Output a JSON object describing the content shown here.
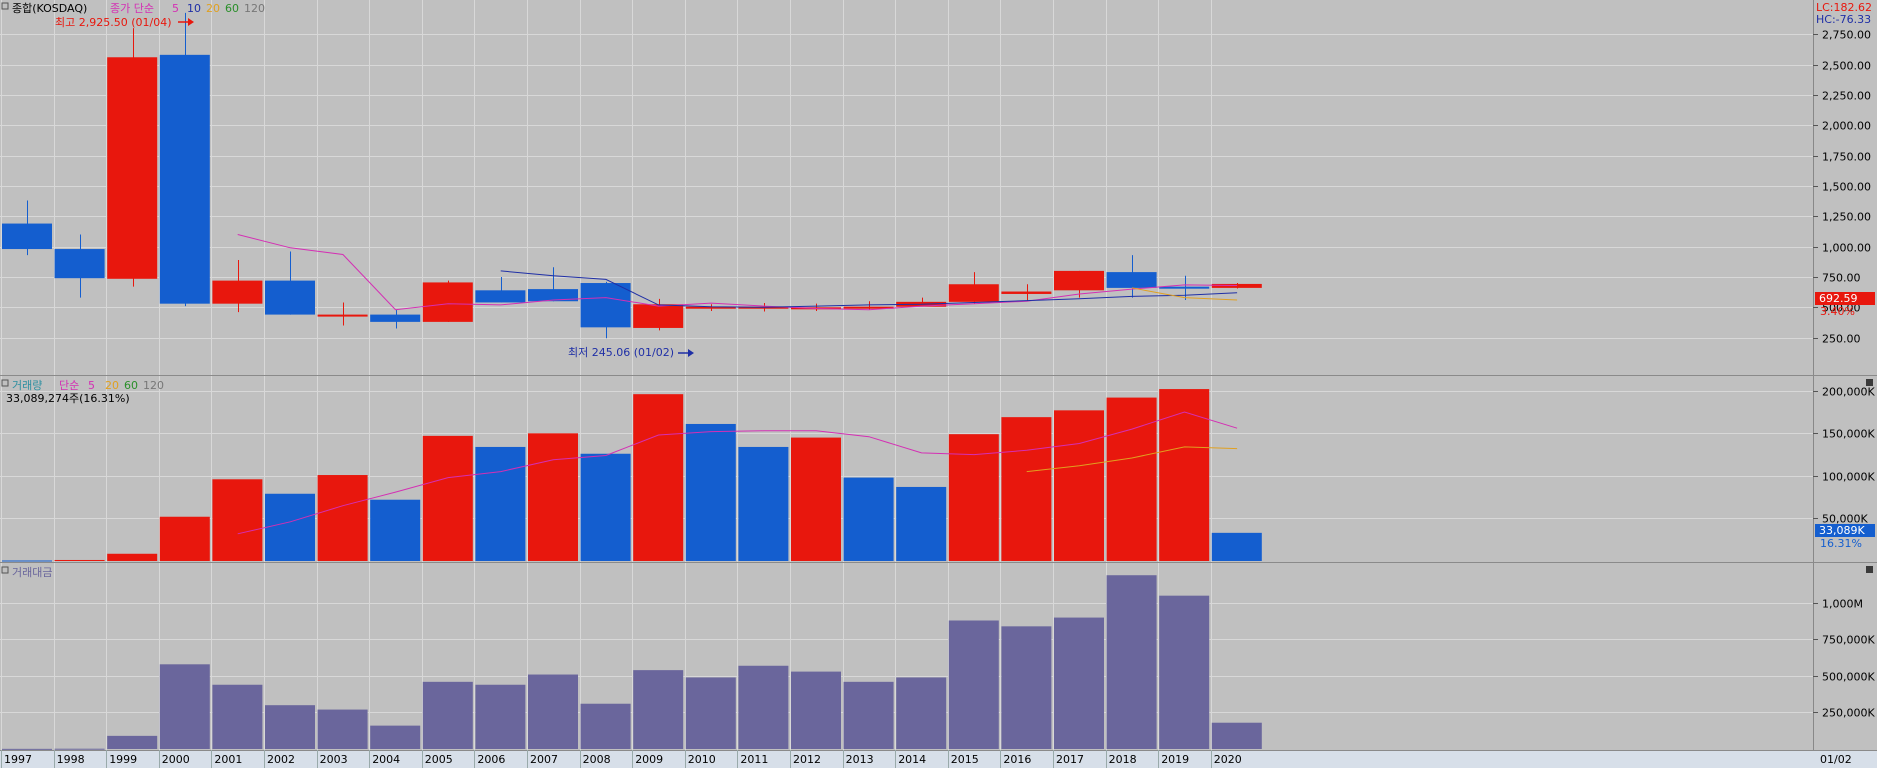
{
  "colors": {
    "background": "#c0c0c0",
    "up": "#e8170d",
    "down": "#145ecf",
    "amount_bar": "#6a669c",
    "ma5": "#d42fb4",
    "ma10": "#1f2fa6",
    "ma20": "#e0a020",
    "ma60": "#2a8f2a",
    "ma120": "#777777",
    "grid": "#d8d8d8",
    "axis_bg": "#d7dfe9"
  },
  "price_panel": {
    "title": "종합(KOSDAQ)",
    "ma_label": "종가 단순",
    "ma_periods": [
      "5",
      "10",
      "20",
      "60",
      "120"
    ],
    "high_marker": "최고 2,925.50 (01/04)",
    "low_marker": "최저 245.06 (01/02)",
    "lc": "LC:182.62",
    "hc": "HC:-76.33",
    "last_price": "692.59",
    "last_change": "3.40%",
    "ticks": [
      "2,750.00",
      "2,500.00",
      "2,250.00",
      "2,000.00",
      "1,750.00",
      "1,500.00",
      "1,250.00",
      "1,000.00",
      "750.00",
      "500.00",
      "250.00"
    ]
  },
  "volume_panel": {
    "title": "거래량",
    "ma_label": "단순",
    "ma_periods": [
      "5",
      "20",
      "60",
      "120"
    ],
    "info": "33,089,274주(16.31%)",
    "last_value": "33,089K",
    "last_pct": "16.31%",
    "ticks": [
      "200,000K",
      "150,000K",
      "100,000K",
      "50,000K"
    ]
  },
  "amount_panel": {
    "title": "거래대금",
    "ticks": [
      "1,000M",
      "750,000K",
      "500,000K",
      "250,000K"
    ]
  },
  "x_axis": {
    "labels": [
      "1997",
      "1998",
      "1999",
      "2000",
      "2001",
      "2002",
      "2003",
      "2004",
      "2005",
      "2006",
      "2007",
      "2008",
      "2009",
      "2010",
      "2011",
      "2012",
      "2013",
      "2014",
      "2015",
      "2016",
      "2017",
      "2018",
      "2019",
      "2020"
    ],
    "right_label": "01/02"
  },
  "chart_data": [
    {
      "type": "candlestick",
      "title": "종합(KOSDAQ)",
      "x": [
        "1997",
        "1998",
        "1999",
        "2000",
        "2001",
        "2002",
        "2003",
        "2004",
        "2005",
        "2006",
        "2007",
        "2008",
        "2009",
        "2010",
        "2011",
        "2012",
        "2013",
        "2014",
        "2015",
        "2016",
        "2017",
        "2018",
        "2019",
        "2020"
      ],
      "open": [
        1190,
        980,
        735,
        2580,
        530,
        720,
        440,
        440,
        380,
        640,
        650,
        700,
        330,
        505,
        505,
        495,
        500,
        505,
        545,
        610,
        640,
        790,
        670,
        660
      ],
      "high": [
        1380,
        1100,
        2800,
        2925.5,
        890,
        960,
        540,
        480,
        720,
        750,
        830,
        710,
        570,
        525,
        535,
        530,
        550,
        580,
        790,
        690,
        800,
        930,
        760,
        700
      ],
      "low": [
        930,
        580,
        670,
        510,
        460,
        440,
        350,
        325,
        380,
        540,
        550,
        245.06,
        310,
        470,
        465,
        470,
        480,
        510,
        530,
        555,
        580,
        580,
        560,
        655
      ],
      "close": [
        980,
        740,
        2560,
        530,
        720,
        440,
        440,
        380,
        705,
        540,
        550,
        335,
        525,
        505,
        505,
        500,
        505,
        545,
        690,
        630,
        800,
        660,
        665,
        692.59
      ],
      "ylim": [
        0,
        2900
      ],
      "ma5": {
        "x": [
          "2001",
          "2002",
          "2003",
          "2004",
          "2005",
          "2006",
          "2007",
          "2008",
          "2009",
          "2010",
          "2011",
          "2012",
          "2013",
          "2014",
          "2015",
          "2016",
          "2017",
          "2018",
          "2019",
          "2020"
        ],
        "values": [
          1100,
          990,
          935,
          480,
          530,
          520,
          560,
          580,
          510,
          535,
          510,
          490,
          480,
          510,
          530,
          550,
          610,
          650,
          685,
          680
        ]
      },
      "ma10": {
        "x": [
          "2006",
          "2007",
          "2008",
          "2009",
          "2010",
          "2011",
          "2012",
          "2013",
          "2014",
          "2015",
          "2016",
          "2017",
          "2018",
          "2019",
          "2020"
        ],
        "values": [
          800,
          760,
          730,
          520,
          505,
          500,
          510,
          520,
          525,
          540,
          555,
          570,
          590,
          600,
          620
        ]
      },
      "ma20": {
        "x": [
          "2018",
          "2019",
          "2020"
        ],
        "values": [
          660,
          580,
          560
        ]
      }
    },
    {
      "type": "bar",
      "title": "거래량",
      "x": [
        "1997",
        "1998",
        "1999",
        "2000",
        "2001",
        "2002",
        "2003",
        "2004",
        "2005",
        "2006",
        "2007",
        "2008",
        "2009",
        "2010",
        "2011",
        "2012",
        "2013",
        "2014",
        "2015",
        "2016",
        "2017",
        "2018",
        "2019",
        "2020"
      ],
      "values": [
        600,
        1200,
        8500,
        52000,
        96000,
        79000,
        101000,
        72000,
        147000,
        134000,
        150000,
        126000,
        196000,
        161000,
        134000,
        145000,
        98000,
        87000,
        149000,
        169000,
        177000,
        192000,
        202000,
        33089
      ],
      "directions": [
        "down",
        "up",
        "up",
        "up",
        "up",
        "down",
        "up",
        "down",
        "up",
        "down",
        "up",
        "down",
        "up",
        "down",
        "down",
        "up",
        "down",
        "down",
        "up",
        "up",
        "up",
        "up",
        "up",
        "down"
      ],
      "ylim": [
        0,
        215000
      ],
      "ma5": {
        "x": [
          "2001",
          "2002",
          "2003",
          "2004",
          "2005",
          "2006",
          "2007",
          "2008",
          "2009",
          "2010",
          "2011",
          "2012",
          "2013",
          "2014",
          "2015",
          "2016",
          "2017",
          "2018",
          "2019",
          "2020"
        ],
        "values": [
          32000,
          46000,
          65000,
          81000,
          98000,
          105000,
          119000,
          124000,
          148000,
          152000,
          153000,
          153000,
          146000,
          127000,
          125000,
          130000,
          138000,
          155000,
          175000,
          156000
        ]
      },
      "ma20": {
        "x": [
          "2016",
          "2017",
          "2018",
          "2019",
          "2020"
        ],
        "values": [
          105000,
          112000,
          121000,
          134000,
          132000
        ]
      }
    },
    {
      "type": "bar",
      "title": "거래대금",
      "x": [
        "1997",
        "1998",
        "1999",
        "2000",
        "2001",
        "2002",
        "2003",
        "2004",
        "2005",
        "2006",
        "2007",
        "2008",
        "2009",
        "2010",
        "2011",
        "2012",
        "2013",
        "2014",
        "2015",
        "2016",
        "2017",
        "2018",
        "2019",
        "2020"
      ],
      "values": [
        1000,
        2000,
        90000,
        580000,
        440000,
        300000,
        270000,
        160000,
        460000,
        440000,
        510000,
        310000,
        540000,
        490000,
        570000,
        530000,
        460000,
        490000,
        880000,
        840000,
        900000,
        1190000,
        1050000,
        180000
      ],
      "ylim": [
        0,
        1260000
      ]
    }
  ]
}
